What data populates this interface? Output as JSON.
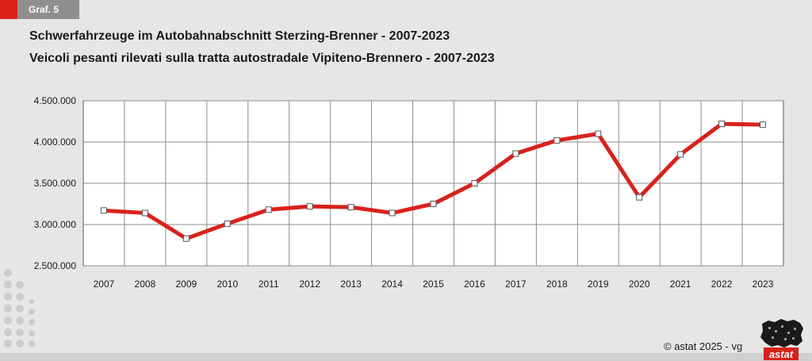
{
  "badge": "Graf. 5",
  "title_de": "Schwerfahrzeuge im Autobahnabschnitt Sterzing-Brenner - 2007-2023",
  "title_it": "Veicoli pesanti rilevati sulla tratta autostradale Vipiteno-Brennero - 2007-2023",
  "copyright": "© astat 2025 - vg",
  "logo_text": "astat",
  "colors": {
    "line": "#d9211c",
    "accent": "#d9211c",
    "grid": "#8c8c8c",
    "plot_bg": "#ffffff"
  },
  "chart_data": {
    "type": "line",
    "title": "Schwerfahrzeuge im Autobahnabschnitt Sterzing-Brenner - 2007-2023",
    "subtitle": "Veicoli pesanti rilevati sulla tratta autostradale Vipiteno-Brennero - 2007-2023",
    "xlabel": "",
    "ylabel": "",
    "categories": [
      "2007",
      "2008",
      "2009",
      "2010",
      "2011",
      "2012",
      "2013",
      "2014",
      "2015",
      "2016",
      "2017",
      "2018",
      "2019",
      "2020",
      "2021",
      "2022",
      "2023"
    ],
    "series": [
      {
        "values": [
          3170000,
          3140000,
          2830000,
          3010000,
          3180000,
          3220000,
          3210000,
          3140000,
          3250000,
          3500000,
          3860000,
          4020000,
          4100000,
          3330000,
          3850000,
          4220000,
          4210000
        ]
      }
    ],
    "ylim": [
      2500000,
      4500000
    ],
    "yticks": [
      2500000,
      3000000,
      3500000,
      4000000,
      4500000
    ],
    "ytick_labels": [
      "2.500.000",
      "3.000.000",
      "3.500.000",
      "4.000.000",
      "4.500.000"
    ],
    "grid": true,
    "legend": "none"
  }
}
